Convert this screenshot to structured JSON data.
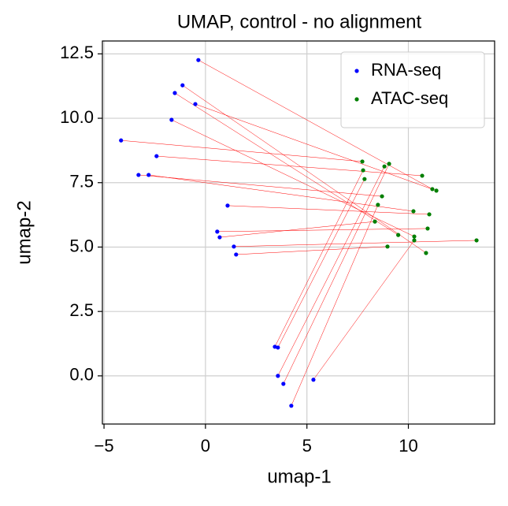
{
  "chart_data": {
    "type": "scatter",
    "title": "UMAP, control - no alignment",
    "xlabel": "umap-1",
    "ylabel": "umap-2",
    "xlim": [
      -5.08,
      14.25
    ],
    "ylim": [
      -1.87,
      13.0
    ],
    "xticks": [
      {
        "value": -5,
        "label": "−5"
      },
      0,
      5,
      10
    ],
    "yticks": [
      {
        "value": 0,
        "label": "0.0"
      },
      2.5,
      {
        "value": 5,
        "label": "5.0"
      },
      7.5,
      {
        "value": 10,
        "label": "10.0"
      },
      12.5
    ],
    "grid": true,
    "legend": "upper right",
    "link_color": "#ff0000",
    "series": [
      {
        "name": "RNA-seq",
        "color": "#0000ff",
        "x": [
          -0.35,
          -1.13,
          -1.51,
          -0.5,
          -1.67,
          -4.16,
          -2.41,
          -3.3,
          -2.8,
          1.09,
          0.58,
          0.7,
          1.4,
          1.51,
          3.42,
          3.57,
          3.57,
          3.84,
          5.32,
          4.23
        ],
        "y": [
          12.26,
          11.28,
          10.98,
          10.55,
          9.94,
          9.14,
          8.53,
          7.8,
          7.8,
          6.61,
          5.6,
          5.38,
          5.02,
          4.71,
          1.13,
          1.1,
          0.0,
          -0.31,
          -0.15,
          -1.16
        ]
      },
      {
        "name": "ATAC-seq",
        "color": "#007f00",
        "x": [
          11.18,
          10.87,
          9.5,
          11.38,
          10.29,
          7.73,
          10.68,
          8.7,
          10.25,
          11.03,
          10.95,
          8.35,
          13.36,
          8.97,
          7.77,
          7.84,
          8.82,
          9.05,
          10.29,
          8.5
        ],
        "y": [
          7.25,
          4.77,
          5.47,
          7.19,
          5.41,
          8.32,
          7.77,
          6.97,
          6.39,
          6.27,
          5.72,
          5.99,
          5.26,
          5.02,
          7.98,
          7.64,
          8.13,
          8.23,
          5.26,
          6.64
        ]
      }
    ]
  }
}
